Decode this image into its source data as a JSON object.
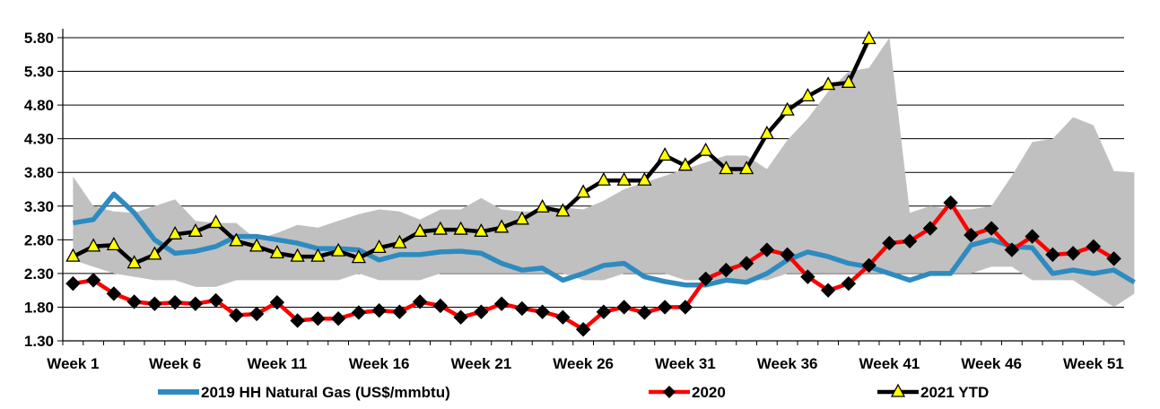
{
  "chart_data": {
    "type": "line",
    "title": "",
    "xlabel": "",
    "ylabel": "",
    "ylim": [
      1.3,
      5.8
    ],
    "y_ticks": [
      "5.80",
      "5.30",
      "4.80",
      "4.30",
      "3.80",
      "3.30",
      "2.80",
      "2.30",
      "1.80",
      "1.30"
    ],
    "x_tick_labels": [
      {
        "week": 1,
        "label": "Week 1"
      },
      {
        "week": 6,
        "label": "Week 6"
      },
      {
        "week": 11,
        "label": "Week 11"
      },
      {
        "week": 16,
        "label": "Week 16"
      },
      {
        "week": 21,
        "label": "Week 21"
      },
      {
        "week": 26,
        "label": "Week 26"
      },
      {
        "week": 31,
        "label": "Week 31"
      },
      {
        "week": 36,
        "label": "Week 36"
      },
      {
        "week": 41,
        "label": "Week 41"
      },
      {
        "week": 46,
        "label": "Week 46"
      },
      {
        "week": 51,
        "label": "Week 51"
      }
    ],
    "grid": "horizontal",
    "legend_position": "bottom",
    "range_band": {
      "color": "#c0c0c0",
      "upper": [
        3.74,
        3.3,
        3.22,
        3.2,
        3.3,
        3.4,
        3.08,
        3.05,
        3.05,
        2.8,
        2.9,
        3.02,
        2.98,
        3.08,
        3.18,
        3.25,
        3.22,
        3.1,
        3.25,
        3.25,
        3.42,
        3.25,
        3.22,
        3.22,
        3.28,
        3.25,
        3.38,
        3.55,
        3.65,
        3.75,
        3.85,
        3.95,
        4.05,
        4.05,
        3.85,
        4.28,
        4.6,
        5.0,
        5.3,
        5.35,
        5.8,
        3.2,
        3.3,
        3.25,
        3.25,
        3.3,
        3.75,
        4.25,
        4.3,
        4.62,
        4.5,
        3.82,
        3.8
      ],
      "lower": [
        2.5,
        2.4,
        2.3,
        2.25,
        2.2,
        2.2,
        2.1,
        2.1,
        2.2,
        2.2,
        2.2,
        2.2,
        2.2,
        2.2,
        2.3,
        2.2,
        2.2,
        2.2,
        2.3,
        2.3,
        2.3,
        2.3,
        2.3,
        2.3,
        2.3,
        2.2,
        2.2,
        2.3,
        2.3,
        2.3,
        2.2,
        2.2,
        2.2,
        2.2,
        2.2,
        2.3,
        2.3,
        2.3,
        2.3,
        2.3,
        2.3,
        2.3,
        2.3,
        2.3,
        2.3,
        2.4,
        2.4,
        2.2,
        2.2,
        2.2,
        2.0,
        1.8,
        2.0
      ]
    },
    "series": [
      {
        "name": "2019 HH Natural Gas (US$/mmbtu)",
        "color": "#2e8bc0",
        "marker": "none",
        "values": [
          3.05,
          3.1,
          3.48,
          3.2,
          2.8,
          2.6,
          2.63,
          2.7,
          2.85,
          2.85,
          2.8,
          2.75,
          2.67,
          2.67,
          2.65,
          2.5,
          2.58,
          2.58,
          2.62,
          2.63,
          2.6,
          2.45,
          2.35,
          2.38,
          2.2,
          2.3,
          2.42,
          2.45,
          2.25,
          2.18,
          2.13,
          2.13,
          2.2,
          2.17,
          2.3,
          2.5,
          2.62,
          2.55,
          2.45,
          2.4,
          2.3,
          2.2,
          2.3,
          2.3,
          2.72,
          2.8,
          2.7,
          2.68,
          2.3,
          2.35,
          2.3,
          2.35,
          2.17
        ]
      },
      {
        "name": "2020",
        "color": "#ff0000",
        "marker": "diamond",
        "values": [
          2.15,
          2.2,
          2.0,
          1.88,
          1.85,
          1.87,
          1.85,
          1.9,
          1.68,
          1.7,
          1.87,
          1.6,
          1.63,
          1.63,
          1.72,
          1.75,
          1.73,
          1.88,
          1.82,
          1.65,
          1.73,
          1.85,
          1.78,
          1.73,
          1.65,
          1.47,
          1.73,
          1.8,
          1.72,
          1.8,
          1.8,
          2.22,
          2.35,
          2.45,
          2.65,
          2.58,
          2.25,
          2.05,
          2.15,
          2.42,
          2.75,
          2.78,
          2.97,
          3.35,
          2.87,
          2.97,
          2.65,
          2.85,
          2.58,
          2.6,
          2.7,
          2.52
        ]
      },
      {
        "name": "2021 YTD",
        "color": "#000000",
        "marker": "triangle",
        "values": [
          2.55,
          2.7,
          2.72,
          2.45,
          2.58,
          2.88,
          2.92,
          3.05,
          2.78,
          2.7,
          2.6,
          2.55,
          2.55,
          2.63,
          2.53,
          2.68,
          2.75,
          2.92,
          2.95,
          2.95,
          2.92,
          2.98,
          3.1,
          3.28,
          3.22,
          3.5,
          3.68,
          3.68,
          3.68,
          4.05,
          3.9,
          4.12,
          3.85,
          3.85,
          4.37,
          4.72,
          4.93,
          5.1,
          5.13,
          5.78
        ]
      }
    ]
  }
}
